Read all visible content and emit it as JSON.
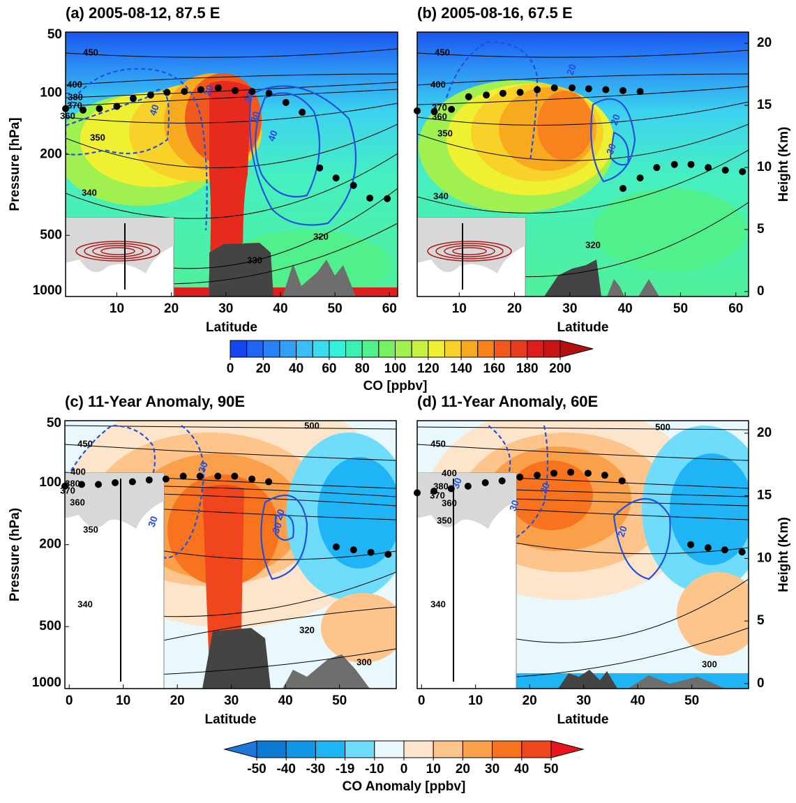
{
  "chart_data": [
    {
      "type": "contour",
      "title": "(a) 2005-08-12, 87.5 E",
      "xlabel": "Latitude",
      "ylabel": "Pressure [hPa]",
      "xlim": [
        0.6,
        61.5
      ],
      "xticks": [
        10,
        20,
        30,
        40,
        50,
        60
      ],
      "ylim": [
        1000,
        50
      ],
      "yticks": [
        50,
        100,
        200,
        500,
        1000
      ],
      "log_y": true,
      "contour_labels": [
        "450",
        "400",
        "380",
        "370",
        "360",
        "350",
        "340",
        "330",
        "320"
      ],
      "blue_labels": [
        "20",
        "40",
        "30",
        "40",
        "20"
      ],
      "series": [
        {
          "color": "#000000",
          "x": [
            0.6,
            3.8,
            6.8,
            10,
            13,
            16.2,
            19.2,
            22.4,
            25.4,
            28.6,
            31.7,
            34.8,
            37.9,
            41,
            44,
            47.2,
            50.2,
            53.4,
            56.4,
            59.6
          ],
          "values": [
            119,
            121,
            119,
            116,
            106,
            102,
            99,
            98,
            96,
            94,
            97,
            98,
            100,
            111,
            124,
            233,
            261,
            284,
            328,
            330
          ]
        }
      ]
    },
    {
      "type": "contour",
      "title": "(b) 2005-08-16, 67.5 E",
      "xlabel": "Latitude",
      "y2label": "Height (Km)",
      "xlim": [
        2.4,
        62.3
      ],
      "xticks": [
        10,
        20,
        30,
        40,
        50,
        60
      ],
      "ylim": [
        1000,
        50
      ],
      "log_y": true,
      "y2lim": [
        -0.4,
        20.9
      ],
      "y2ticks": [
        0,
        5,
        10,
        15,
        20
      ],
      "contour_labels": [
        "450",
        "400",
        "370",
        "360",
        "350",
        "340",
        "320"
      ],
      "blue_labels": [
        "20",
        "20",
        "30"
      ],
      "series": [
        {
          "color": "#000000",
          "x": [
            2.4,
            5.5,
            8.6,
            11.7,
            14.9,
            17.9,
            21,
            24.1,
            27.2,
            30.4,
            33.4,
            36.5,
            39.6,
            42.7
          ],
          "values": [
            122,
            123,
            120,
            104,
            102,
            100,
            99,
            96,
            94,
            94,
            95,
            96,
            97,
            98
          ]
        },
        {
          "color": "#000000",
          "x": [
            39.6,
            42.7,
            45.7,
            48.9,
            51.9,
            55,
            58.1,
            61.2
          ],
          "values": [
            294,
            261,
            232,
            224,
            224,
            232,
            239,
            243
          ]
        }
      ]
    },
    {
      "type": "contour",
      "title": "(c) 11-Year Anomaly, 90E",
      "xlabel": "Latitude",
      "ylabel": "Pressure (hPa)",
      "xlim": [
        -0.8,
        60.5
      ],
      "xticks": [
        0,
        10,
        20,
        30,
        40,
        50
      ],
      "ylim": [
        1000,
        50
      ],
      "yticks": [
        50,
        100,
        200,
        500,
        1000
      ],
      "log_y": true,
      "contour_labels": [
        "500",
        "450",
        "400",
        "380",
        "370",
        "360",
        "350",
        "340",
        "320",
        "300"
      ],
      "blue_labels": [
        "30",
        "30",
        "20",
        "30"
      ],
      "series": [
        {
          "color": "#000000",
          "x": [
            -0.8,
            2.3,
            5.4,
            8.5,
            11.7,
            14.8,
            17.9,
            21.1,
            24.2,
            27.5,
            30.6,
            33.8,
            36.9
          ],
          "values": [
            104,
            102,
            102,
            100,
            99,
            97,
            96,
            93,
            93,
            93,
            93,
            96,
            99
          ]
        },
        {
          "color": "#000000",
          "x": [
            49.4,
            52.6,
            55.8,
            59
          ],
          "values": [
            205,
            212,
            218,
            223
          ]
        }
      ]
    },
    {
      "type": "contour",
      "title": "(d) 11-Year Anomaly, 60E",
      "xlabel": "Latitude",
      "y2label": "Height (Km)",
      "xlim": [
        -0.8,
        60.5
      ],
      "xticks": [
        0,
        10,
        20,
        30,
        40,
        50
      ],
      "ylim": [
        1000,
        50
      ],
      "log_y": true,
      "y2lim": [
        -0.4,
        21
      ],
      "y2ticks": [
        0,
        5,
        10,
        15,
        20
      ],
      "contour_labels": [
        "500",
        "450",
        "400",
        "380",
        "370",
        "360",
        "350",
        "340",
        "300"
      ],
      "blue_labels": [
        "30",
        "30",
        "20",
        "20"
      ],
      "series": [
        {
          "color": "#000000",
          "x": [
            -0.8,
            2.3,
            5.5,
            8.6,
            11.8,
            14.9,
            18.2,
            21.4,
            24.5,
            27.6,
            30.8,
            33.9,
            37.1
          ],
          "values": [
            112,
            110,
            107,
            104,
            100,
            98,
            94,
            92,
            90,
            89,
            90,
            92,
            98
          ]
        },
        {
          "color": "#000000",
          "x": [
            49.8,
            53,
            56.1,
            59.3
          ],
          "values": [
            200,
            207,
            212,
            217
          ]
        }
      ]
    }
  ],
  "colorbars": [
    {
      "label": "CO [ppbv]",
      "ticks": [
        0,
        20,
        40,
        60,
        80,
        100,
        120,
        140,
        160,
        180,
        200
      ],
      "colors": [
        "#1446f0",
        "#1e64f5",
        "#2882f5",
        "#329ff5",
        "#3cbef5",
        "#3cdcf0",
        "#32f0dc",
        "#3cf0b4",
        "#50f08c",
        "#78f064",
        "#a0f050",
        "#c8f040",
        "#f0f032",
        "#f8d228",
        "#f8aa1e",
        "#f8821e",
        "#f05a1e",
        "#e63c1e",
        "#dc1e1e",
        "#c81414"
      ],
      "over_color": "#b41010"
    },
    {
      "label": "CO Anomaly [ppbv]",
      "ticks": [
        -50,
        -40,
        -30,
        -19,
        -10,
        0,
        10,
        20,
        30,
        40,
        50
      ],
      "colors": [
        "#0a7ad2",
        "#1496e6",
        "#1eb4f5",
        "#6edcfa",
        "#e8f8fc",
        "#fde5cc",
        "#fdc48c",
        "#fba04a",
        "#f8731e",
        "#f0461e"
      ],
      "under_color": "#1e78dc",
      "over_color": "#e8141e"
    }
  ]
}
